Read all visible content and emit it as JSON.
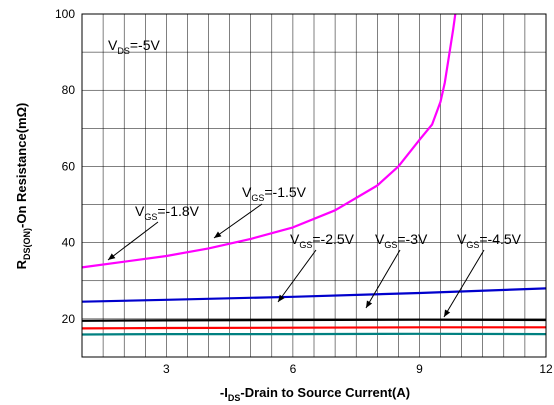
{
  "chart_data": {
    "type": "line",
    "title": "",
    "xlabel": {
      "prefix": "-I",
      "sub": "DS",
      "rest": "-Drain to Source Current(A)"
    },
    "ylabel": {
      "prefix": "R",
      "sub": "DS(ON)",
      "rest": "-On Resistance(mΩ)"
    },
    "xlim": [
      1,
      12
    ],
    "ylim": [
      10,
      100
    ],
    "x_ticks": [
      3,
      6,
      9,
      12
    ],
    "y_ticks": [
      20,
      40,
      60,
      80,
      100
    ],
    "grid": true,
    "series": [
      {
        "name": "VGS=-1.5V",
        "color": "#ff00ff",
        "x": [
          1,
          2,
          3,
          4,
          5,
          6,
          7,
          8,
          8.5,
          9,
          9.3,
          9.5,
          9.6,
          9.7,
          9.8,
          9.85
        ],
        "y": [
          33.5,
          35,
          36.5,
          38.5,
          41,
          44,
          48.5,
          55,
          60,
          67,
          71,
          77,
          82,
          89,
          96,
          100
        ]
      },
      {
        "name": "VGS=-1.8V",
        "color": "#0000cc",
        "x": [
          1,
          3,
          6,
          9,
          12
        ],
        "y": [
          24.5,
          25,
          25.8,
          26.8,
          28
        ]
      },
      {
        "name": "VGS=-2.5V",
        "color": "#000000",
        "x": [
          1,
          3,
          6,
          9,
          12
        ],
        "y": [
          19.5,
          19.6,
          19.7,
          19.8,
          19.7
        ]
      },
      {
        "name": "VGS=-3V",
        "color": "#ff0000",
        "x": [
          1,
          3,
          6,
          9,
          12
        ],
        "y": [
          17.5,
          17.6,
          17.7,
          17.8,
          17.8
        ]
      },
      {
        "name": "VGS=-4.5V",
        "color": "#008080",
        "x": [
          1,
          3,
          6,
          9,
          12
        ],
        "y": [
          15.9,
          16,
          16,
          16.1,
          16
        ]
      }
    ],
    "annotations": [
      {
        "main": "V",
        "sub": "DS",
        "rest": "=-5V"
      },
      {
        "main": "V",
        "sub": "GS",
        "rest": "=-1.5V"
      },
      {
        "main": "V",
        "sub": "GS",
        "rest": "=-1.8V"
      },
      {
        "main": "V",
        "sub": "GS",
        "rest": "=-2.5V"
      },
      {
        "main": "V",
        "sub": "GS",
        "rest": "=-3V"
      },
      {
        "main": "V",
        "sub": "GS",
        "rest": "=-4.5V"
      }
    ]
  }
}
